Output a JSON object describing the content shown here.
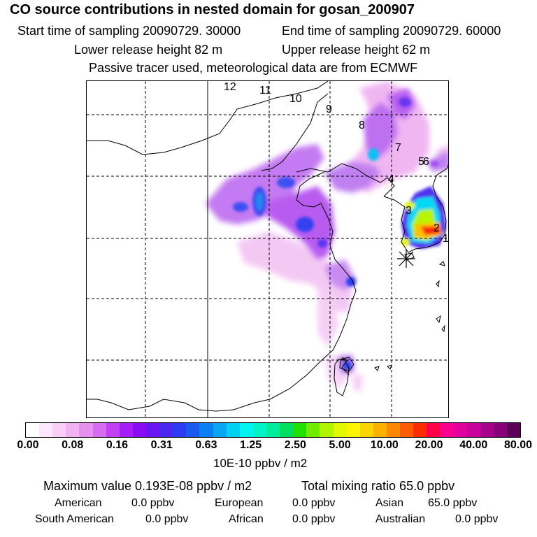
{
  "header": {
    "title": "CO  source contributions in nested domain for gosan_200907",
    "start_time": "Start time of sampling 20090729. 30000",
    "end_time": "End time of sampling 20090729. 60000",
    "lower_release": "Lower release height   82 m",
    "upper_release": "Upper release height   62 m",
    "tracer_note": "Passive tracer used, meteorological data are from ECMWF"
  },
  "trajectory_labels": [
    "12",
    "11",
    "10",
    "9",
    "8",
    "7",
    "5",
    "6",
    "4",
    "3",
    "2",
    "1"
  ],
  "colorbar": {
    "colors": [
      "#ffffff",
      "#fde7fc",
      "#f9cff8",
      "#f1b2f1",
      "#e690f0",
      "#d66cf0",
      "#c040f2",
      "#a51cf5",
      "#8a0cf2",
      "#6a16f2",
      "#4a28f0",
      "#2c3cf0",
      "#1a5af0",
      "#0c80f2",
      "#08a6f4",
      "#00d0f4",
      "#00f4f0",
      "#00f4c8",
      "#00ec9c",
      "#00e060",
      "#20e000",
      "#70ec00",
      "#b0f400",
      "#e0f800",
      "#fcf400",
      "#fcd400",
      "#fcb000",
      "#fc8800",
      "#fc5c00",
      "#fc2c00",
      "#fc0048",
      "#f80090",
      "#e4009c",
      "#c8009c",
      "#a8008c",
      "#880078",
      "#5c0058"
    ],
    "tick_labels": [
      "0.00",
      "0.08",
      "0.16",
      "0.31",
      "0.63",
      "1.25",
      "2.50",
      "5.00",
      "10.00",
      "20.00",
      "40.00",
      "80.00"
    ],
    "units": "10E-10 ppbv / m2"
  },
  "summary": {
    "max_value": "Maximum value  0.193E-08 ppbv / m2",
    "total_mixing": "Total mixing ratio        65.0 ppbv"
  },
  "regions": {
    "american_label": "American",
    "american_value": "0.0 ppbv",
    "european_label": "European",
    "european_value": "0.0 ppbv",
    "asian_label": "Asian",
    "asian_value": "65.0 ppbv",
    "south_american_label": "South American",
    "south_american_value": "0.0 ppbv",
    "african_label": "African",
    "african_value": "0.0 ppbv",
    "australian_label": "Australian",
    "australian_value": "0.0 ppbv"
  }
}
